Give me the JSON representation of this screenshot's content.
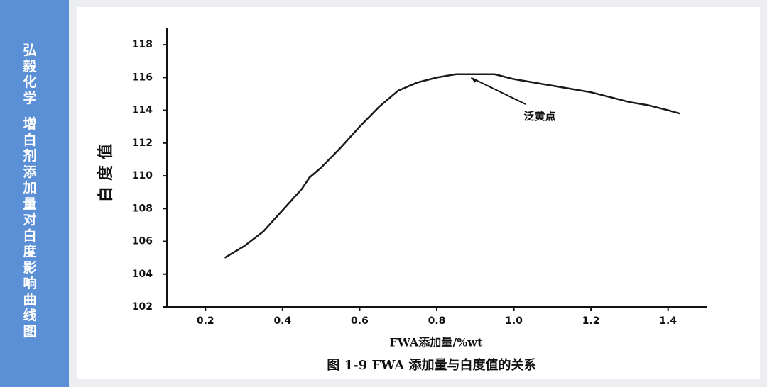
{
  "sidebar": {
    "brand": "弘毅化学",
    "title": "增白剂添加量对白度影响曲线图"
  },
  "chart_data": {
    "type": "line",
    "title": "图 1-9 FWA 添加量与白度值的关系",
    "xlabel": "FWA添加量/%wt",
    "ylabel": "白度值",
    "annotation": "泛黄点",
    "x": [
      0.25,
      0.3,
      0.35,
      0.4,
      0.45,
      0.47,
      0.5,
      0.55,
      0.6,
      0.65,
      0.7,
      0.75,
      0.8,
      0.85,
      0.9,
      0.95,
      1.0,
      1.05,
      1.1,
      1.2,
      1.25,
      1.3,
      1.35,
      1.4,
      1.43
    ],
    "series": [
      {
        "color": "#1a1a1a",
        "values": [
          105,
          105.7,
          106.6,
          107.9,
          109.2,
          109.9,
          110.5,
          111.7,
          113,
          114.2,
          115.2,
          115.7,
          116,
          116.2,
          116.2,
          116.2,
          115.9,
          115.7,
          115.5,
          115.1,
          114.8,
          114.5,
          114.3,
          114,
          113.8
        ]
      }
    ],
    "xlim": [
      0.1,
      1.5
    ],
    "ylim": [
      102,
      119
    ],
    "xticks": [
      0.2,
      0.4,
      0.6,
      0.8,
      {
        "value": 1.0,
        "label": "1.0"
      },
      1.2,
      1.4
    ],
    "yticks": [
      102,
      104,
      106,
      108,
      110,
      112,
      114,
      116,
      118
    ]
  }
}
